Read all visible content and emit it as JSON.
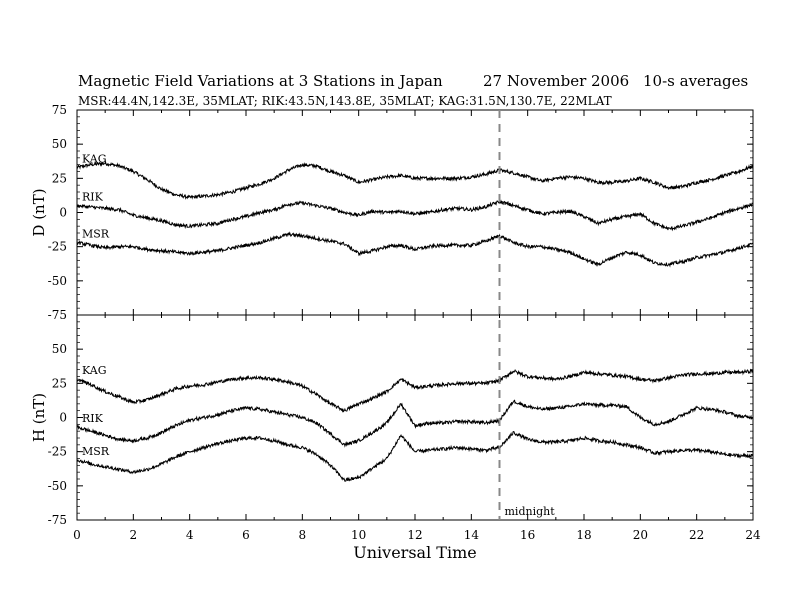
{
  "header": {
    "title": "Magnetic Field Variations at 3 Stations in Japan",
    "date": "27 November 2006",
    "averaging": "10-s averages",
    "stations": "MSR:44.4N,142.3E, 35MLAT;  RIK:43.5N,143.8E, 35MLAT;  KAG:31.5N,130.7E, 22MLAT"
  },
  "colors": {
    "axes": "#000000",
    "trace": "#000000",
    "marker": "#888888"
  },
  "chart_data": [
    {
      "type": "line",
      "panel": "D",
      "ylabel": "D (nT)",
      "ylim": [
        -75,
        75
      ],
      "yticks": [
        75,
        50,
        25,
        0,
        -25,
        -50,
        -75
      ],
      "xlim": [
        0,
        24
      ],
      "series": [
        {
          "name": "KAG",
          "x": [
            0,
            0.5,
            1,
            1.5,
            2,
            2.5,
            3,
            3.5,
            4,
            4.5,
            5,
            5.5,
            6,
            6.5,
            7,
            7.5,
            8,
            8.5,
            9,
            9.5,
            10,
            10.5,
            11,
            11.5,
            12,
            12.5,
            13,
            13.5,
            14,
            14.5,
            15,
            15.5,
            16,
            16.5,
            17,
            17.5,
            18,
            18.5,
            19,
            19.5,
            20,
            20.5,
            21,
            21.5,
            22,
            22.5,
            23,
            23.5,
            24
          ],
          "values": [
            33,
            35,
            36,
            34,
            30,
            24,
            17,
            13,
            11,
            12,
            13,
            15,
            18,
            21,
            25,
            31,
            35,
            34,
            30,
            27,
            22,
            24,
            26,
            27,
            25,
            25,
            25,
            25,
            26,
            28,
            31,
            29,
            26,
            23,
            25,
            26,
            25,
            22,
            22,
            23,
            25,
            22,
            18,
            19,
            22,
            24,
            27,
            30,
            34
          ]
        },
        {
          "name": "RIK",
          "x": [
            0,
            0.5,
            1,
            1.5,
            2,
            2.5,
            3,
            3.5,
            4,
            4.5,
            5,
            5.5,
            6,
            6.5,
            7,
            7.5,
            8,
            8.5,
            9,
            9.5,
            10,
            10.5,
            11,
            11.5,
            12,
            12.5,
            13,
            13.5,
            14,
            14.5,
            15,
            15.5,
            16,
            16.5,
            17,
            17.5,
            18,
            18.5,
            19,
            19.5,
            20,
            20.5,
            21,
            21.5,
            22,
            22.5,
            23,
            23.5,
            24
          ],
          "values": [
            5,
            4,
            3,
            2,
            -2,
            -4,
            -6,
            -9,
            -10,
            -9,
            -8,
            -5,
            -3,
            0,
            2,
            6,
            7,
            5,
            3,
            0,
            -2,
            1,
            0,
            1,
            -1,
            0,
            2,
            3,
            2,
            4,
            8,
            5,
            2,
            -1,
            0,
            1,
            -3,
            -8,
            -5,
            -3,
            -1,
            -8,
            -12,
            -10,
            -7,
            -4,
            0,
            3,
            6
          ]
        },
        {
          "name": "MSR",
          "x": [
            0,
            0.5,
            1,
            1.5,
            2,
            2.5,
            3,
            3.5,
            4,
            4.5,
            5,
            5.5,
            6,
            6.5,
            7,
            7.5,
            8,
            8.5,
            9,
            9.5,
            10,
            10.5,
            11,
            11.5,
            12,
            12.5,
            13,
            13.5,
            14,
            14.5,
            15,
            15.5,
            16,
            16.5,
            17,
            17.5,
            18,
            18.5,
            19,
            19.5,
            20,
            20.5,
            21,
            21.5,
            22,
            22.5,
            23,
            23.5,
            24
          ],
          "values": [
            -22,
            -24,
            -26,
            -25,
            -25,
            -27,
            -28,
            -29,
            -30,
            -29,
            -28,
            -26,
            -24,
            -22,
            -19,
            -16,
            -17,
            -19,
            -21,
            -23,
            -30,
            -28,
            -25,
            -24,
            -27,
            -25,
            -24,
            -24,
            -24,
            -21,
            -17,
            -22,
            -25,
            -25,
            -27,
            -29,
            -34,
            -38,
            -33,
            -29,
            -31,
            -37,
            -38,
            -36,
            -33,
            -31,
            -29,
            -26,
            -23
          ]
        }
      ]
    },
    {
      "type": "line",
      "panel": "H",
      "ylabel": "H (nT)",
      "xlabel": "Universal Time",
      "ylim": [
        -75,
        75
      ],
      "yticks": [
        75,
        50,
        25,
        0,
        -25,
        -50,
        -75
      ],
      "xlim": [
        0,
        24
      ],
      "xticks": [
        0,
        2,
        4,
        6,
        8,
        10,
        12,
        14,
        16,
        18,
        20,
        22,
        24
      ],
      "series": [
        {
          "name": "KAG",
          "x": [
            0,
            0.5,
            1,
            1.5,
            2,
            2.5,
            3,
            3.5,
            4,
            4.5,
            5,
            5.5,
            6,
            6.5,
            7,
            7.5,
            8,
            8.5,
            9,
            9.5,
            10,
            10.5,
            11,
            11.5,
            12,
            12.5,
            13,
            13.5,
            14,
            14.5,
            15,
            15.5,
            16,
            16.5,
            17,
            17.5,
            18,
            18.5,
            19,
            19.5,
            20,
            20.5,
            21,
            21.5,
            22,
            22.5,
            23,
            23.5,
            24
          ],
          "values": [
            28,
            24,
            19,
            15,
            11,
            13,
            17,
            21,
            23,
            24,
            26,
            28,
            29,
            29,
            28,
            26,
            23,
            17,
            10,
            5,
            10,
            14,
            19,
            28,
            22,
            23,
            24,
            25,
            25,
            25,
            27,
            34,
            30,
            29,
            28,
            30,
            33,
            32,
            31,
            30,
            28,
            27,
            29,
            31,
            32,
            32,
            33,
            33,
            34
          ]
        },
        {
          "name": "RIK",
          "x": [
            0,
            0.5,
            1,
            1.5,
            2,
            2.5,
            3,
            3.5,
            4,
            4.5,
            5,
            5.5,
            6,
            6.5,
            7,
            7.5,
            8,
            8.5,
            9,
            9.5,
            10,
            10.5,
            11,
            11.5,
            12,
            12.5,
            13,
            13.5,
            14,
            14.5,
            15,
            15.5,
            16,
            16.5,
            17,
            17.5,
            18,
            18.5,
            19,
            19.5,
            20,
            20.5,
            21,
            21.5,
            22,
            22.5,
            23,
            23.5,
            24
          ],
          "values": [
            -7,
            -10,
            -13,
            -16,
            -17,
            -15,
            -11,
            -6,
            -2,
            0,
            2,
            5,
            7,
            6,
            4,
            2,
            0,
            -4,
            -12,
            -20,
            -17,
            -11,
            -4,
            10,
            -6,
            -4,
            -4,
            -3,
            -3,
            -4,
            -2,
            12,
            8,
            6,
            7,
            8,
            10,
            9,
            9,
            8,
            0,
            -5,
            -3,
            2,
            7,
            6,
            4,
            1,
            0
          ]
        },
        {
          "name": "MSR",
          "x": [
            0,
            0.5,
            1,
            1.5,
            2,
            2.5,
            3,
            3.5,
            4,
            4.5,
            5,
            5.5,
            6,
            6.5,
            7,
            7.5,
            8,
            8.5,
            9,
            9.5,
            10,
            10.5,
            11,
            11.5,
            12,
            12.5,
            13,
            13.5,
            14,
            14.5,
            15,
            15.5,
            16,
            16.5,
            17,
            17.5,
            18,
            18.5,
            19,
            19.5,
            20,
            20.5,
            21,
            21.5,
            22,
            22.5,
            23,
            23.5,
            24
          ],
          "values": [
            -31,
            -34,
            -36,
            -38,
            -40,
            -38,
            -34,
            -29,
            -25,
            -22,
            -19,
            -17,
            -15,
            -15,
            -17,
            -20,
            -22,
            -27,
            -35,
            -46,
            -44,
            -37,
            -30,
            -13,
            -25,
            -24,
            -23,
            -22,
            -23,
            -24,
            -22,
            -11,
            -16,
            -18,
            -18,
            -17,
            -15,
            -17,
            -18,
            -20,
            -22,
            -26,
            -25,
            -24,
            -24,
            -25,
            -27,
            -28,
            -28
          ]
        }
      ]
    }
  ],
  "annotations": {
    "midnight_ut": 15,
    "midnight_label": "midnight"
  }
}
